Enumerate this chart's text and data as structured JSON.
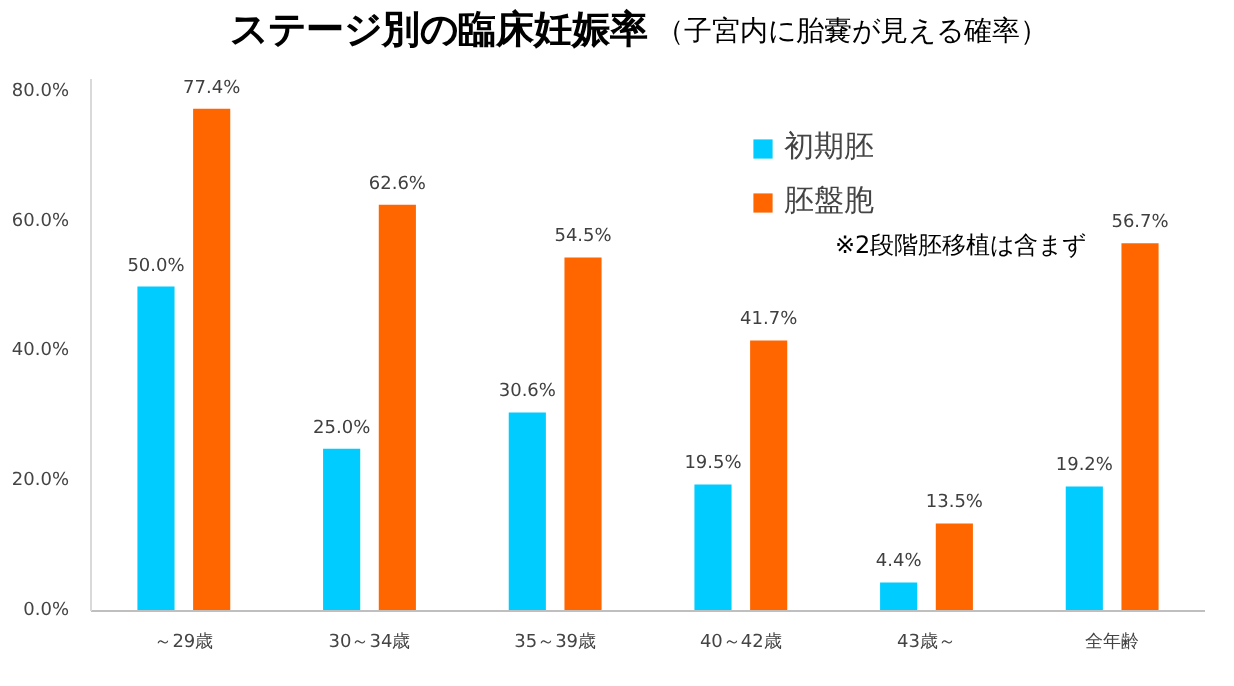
{
  "chart_data": {
    "type": "bar",
    "title": "ステージ別の臨床妊娠率",
    "subtitle": "（子宮内に胎嚢が見える確率）",
    "categories": [
      "～29歳",
      "30～34歳",
      "35～39歳",
      "40～42歳",
      "43歳～",
      "全年齢"
    ],
    "series": [
      {
        "name": "初期胚",
        "color": "#00ccff",
        "values": [
          50.0,
          25.0,
          30.6,
          19.5,
          4.4,
          19.2
        ],
        "value_labels": [
          "50.0%",
          "25.0%",
          "30.6%",
          "19.5%",
          "4.4%",
          "19.2%"
        ]
      },
      {
        "name": "胚盤胞",
        "color": "#ff6600",
        "values": [
          77.4,
          62.6,
          54.5,
          41.7,
          13.5,
          56.7
        ],
        "value_labels": [
          "77.4%",
          "62.6%",
          "54.5%",
          "41.7%",
          "13.5%",
          "56.7%"
        ]
      }
    ],
    "ylim": [
      0,
      82
    ],
    "yticks": [
      {
        "value": 0,
        "label": "0.0%"
      },
      {
        "value": 20,
        "label": "20.0%"
      },
      {
        "value": 40,
        "label": "40.0%"
      },
      {
        "value": 60,
        "label": "60.0%"
      },
      {
        "value": 80,
        "label": "80.0%"
      }
    ],
    "annotations": [
      "※2段階胚移植は含まず"
    ],
    "legend": "top right",
    "grid": false
  }
}
